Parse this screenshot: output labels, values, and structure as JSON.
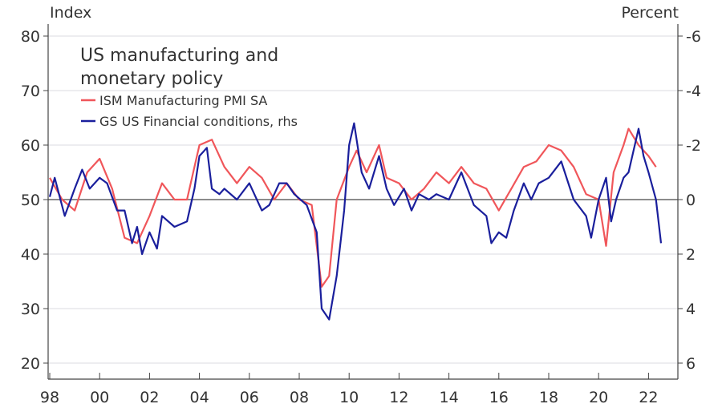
{
  "chart_data": {
    "type": "line",
    "title_lines": [
      "US manufacturing and",
      "monetary policy"
    ],
    "ylabel_left": "Index",
    "ylabel_right": "Percent",
    "xlim": [
      1998,
      2023
    ],
    "ylim_left": [
      20,
      80
    ],
    "ylim_right": [
      6,
      -6
    ],
    "right_axis_inverted": true,
    "x_ticks": [
      {
        "v": 1998,
        "label": "98"
      },
      {
        "v": 2000,
        "label": "00"
      },
      {
        "v": 2002,
        "label": "02"
      },
      {
        "v": 2004,
        "label": "04"
      },
      {
        "v": 2006,
        "label": "06"
      },
      {
        "v": 2008,
        "label": "08"
      },
      {
        "v": 2010,
        "label": "10"
      },
      {
        "v": 2012,
        "label": "12"
      },
      {
        "v": 2014,
        "label": "14"
      },
      {
        "v": 2016,
        "label": "16"
      },
      {
        "v": 2018,
        "label": "18"
      },
      {
        "v": 2020,
        "label": "20"
      },
      {
        "v": 2022,
        "label": "22"
      }
    ],
    "y_ticks_left": [
      {
        "v": 80,
        "label": "80"
      },
      {
        "v": 70,
        "label": "70"
      },
      {
        "v": 60,
        "label": "60"
      },
      {
        "v": 50,
        "label": "50"
      },
      {
        "v": 40,
        "label": "40"
      },
      {
        "v": 30,
        "label": "30"
      },
      {
        "v": 20,
        "label": "20"
      }
    ],
    "y_ticks_right": [
      {
        "v": -6,
        "label": "-6"
      },
      {
        "v": -4,
        "label": "-4"
      },
      {
        "v": -2,
        "label": "-2"
      },
      {
        "v": 0,
        "label": "0"
      },
      {
        "v": 2,
        "label": "2"
      },
      {
        "v": 4,
        "label": "4"
      },
      {
        "v": 6,
        "label": "6"
      }
    ],
    "grid": true,
    "legend_position": "top-left",
    "series": [
      {
        "name": "ISM Manufacturing PMI SA",
        "axis": "left",
        "color": "#f0565a",
        "x": [
          1998.0,
          1998.5,
          1999.0,
          1999.5,
          2000.0,
          2000.5,
          2001.0,
          2001.5,
          2002.0,
          2002.5,
          2003.0,
          2003.5,
          2004.0,
          2004.5,
          2005.0,
          2005.5,
          2006.0,
          2006.5,
          2007.0,
          2007.5,
          2008.0,
          2008.5,
          2008.9,
          2009.2,
          2009.5,
          2010.0,
          2010.3,
          2010.7,
          2011.2,
          2011.5,
          2012.0,
          2012.5,
          2013.0,
          2013.5,
          2014.0,
          2014.5,
          2015.0,
          2015.5,
          2016.0,
          2016.5,
          2017.0,
          2017.5,
          2018.0,
          2018.5,
          2019.0,
          2019.5,
          2020.0,
          2020.3,
          2020.6,
          2021.0,
          2021.2,
          2021.6,
          2022.0,
          2022.3
        ],
        "y": [
          54,
          50,
          48,
          55,
          57.5,
          52,
          43,
          42,
          47,
          53,
          50,
          50,
          60,
          61,
          56,
          53,
          56,
          54,
          50,
          53,
          50,
          49,
          34,
          36,
          50,
          56,
          59,
          55,
          60,
          54,
          53,
          50,
          52,
          55,
          53,
          56,
          53,
          52,
          48,
          52,
          56,
          57,
          60,
          59,
          56,
          51,
          50,
          41.5,
          55,
          60,
          63,
          60,
          58,
          56
        ]
      },
      {
        "name": "GS US Financial conditions, rhs",
        "axis": "right",
        "color": "#1a1f9c",
        "x": [
          1998.0,
          1998.2,
          1998.6,
          1999.0,
          1999.3,
          1999.6,
          2000.0,
          2000.3,
          2000.7,
          2001.0,
          2001.3,
          2001.5,
          2001.7,
          2002.0,
          2002.3,
          2002.5,
          2003.0,
          2003.5,
          2003.8,
          2004.0,
          2004.3,
          2004.5,
          2004.8,
          2005.0,
          2005.5,
          2006.0,
          2006.5,
          2006.8,
          2007.2,
          2007.5,
          2007.8,
          2008.3,
          2008.7,
          2008.9,
          2009.2,
          2009.5,
          2009.8,
          2010.0,
          2010.2,
          2010.5,
          2010.8,
          2011.2,
          2011.5,
          2011.8,
          2012.2,
          2012.5,
          2012.8,
          2013.2,
          2013.5,
          2014.0,
          2014.5,
          2015.0,
          2015.5,
          2015.7,
          2016.0,
          2016.3,
          2016.6,
          2017.0,
          2017.3,
          2017.6,
          2018.0,
          2018.5,
          2019.0,
          2019.5,
          2019.7,
          2020.0,
          2020.3,
          2020.5,
          2020.7,
          2021.0,
          2021.2,
          2021.6,
          2021.8,
          2022.0,
          2022.3,
          2022.5
        ],
        "y": [
          -0.1,
          -0.8,
          0.6,
          -0.4,
          -1.1,
          -0.4,
          -0.8,
          -0.6,
          0.4,
          0.4,
          1.6,
          1.0,
          2.0,
          1.2,
          1.8,
          0.6,
          1.0,
          0.8,
          -0.4,
          -1.6,
          -1.9,
          -0.4,
          -0.2,
          -0.4,
          0,
          -0.6,
          0.4,
          0.2,
          -0.6,
          -0.6,
          -0.2,
          0.2,
          1.2,
          4.0,
          4.4,
          2.8,
          0.4,
          -2.0,
          -2.8,
          -1.0,
          -0.4,
          -1.6,
          -0.4,
          0.2,
          -0.4,
          0.4,
          -0.2,
          0,
          -0.2,
          0,
          -1.0,
          0.2,
          0.6,
          1.6,
          1.2,
          1.4,
          0.4,
          -0.6,
          0,
          -0.6,
          -0.8,
          -1.4,
          0,
          0.6,
          1.4,
          0,
          -0.8,
          0.8,
          0,
          -0.8,
          -1.0,
          -2.6,
          -1.6,
          -1.0,
          0,
          1.6
        ]
      }
    ]
  }
}
